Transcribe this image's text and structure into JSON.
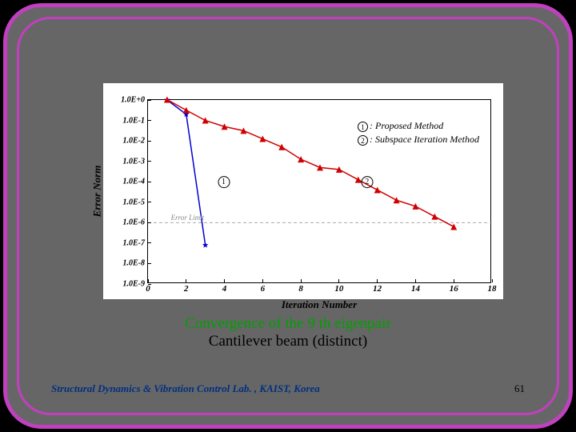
{
  "slide": {
    "background_color": "#666666",
    "frame_outer_color": "#c040c0",
    "frame_inner_color": "#c040c0"
  },
  "chart": {
    "type": "line",
    "xlabel": "Iteration Number",
    "ylabel": "Error Norm",
    "xlim": [
      0,
      18
    ],
    "xtick_step": 2,
    "xticks": [
      0,
      2,
      4,
      6,
      8,
      10,
      12,
      14,
      16,
      18
    ],
    "yscale": "log",
    "ylim_exp": [
      -9,
      0
    ],
    "yticks_labels": [
      "1.0E+0",
      "1.0E-1",
      "1.0E-2",
      "1.0E-3",
      "1.0E-4",
      "1.0E-5",
      "1.0E-6",
      "1.0E-7",
      "1.0E-8",
      "1.0E-9"
    ],
    "yticks_exp": [
      0,
      -1,
      -2,
      -3,
      -4,
      -5,
      -6,
      -7,
      -8,
      -9
    ],
    "background_color": "#ffffff",
    "axis_color": "#000000",
    "tick_fontsize": 10,
    "label_fontsize": 13,
    "label_fontstyle": "italic bold",
    "error_limit": {
      "label": "Error Limit",
      "y_exp": -6,
      "line_color": "#aaaaaa",
      "dash": "4 3",
      "label_x": 1.2
    },
    "series": [
      {
        "id": 1,
        "name": "Proposed Method",
        "color": "#0000d0",
        "marker": "star",
        "marker_color": "#0000d0",
        "line_width": 1.5,
        "points": [
          {
            "x": 1,
            "y_exp": 0.0
          },
          {
            "x": 2,
            "y_exp": -0.7
          },
          {
            "x": 3,
            "y_exp": -7.1
          }
        ],
        "annot_pos": {
          "x": 4.0,
          "y_exp": -4.0
        }
      },
      {
        "id": 2,
        "name": "Subspace Iteration Method",
        "color": "#d00000",
        "marker": "triangle",
        "marker_color": "#d00000",
        "line_width": 1.5,
        "points": [
          {
            "x": 1,
            "y_exp": 0.02
          },
          {
            "x": 2,
            "y_exp": -0.5
          },
          {
            "x": 3,
            "y_exp": -1.0
          },
          {
            "x": 4,
            "y_exp": -1.3
          },
          {
            "x": 5,
            "y_exp": -1.5
          },
          {
            "x": 6,
            "y_exp": -1.9
          },
          {
            "x": 7,
            "y_exp": -2.3
          },
          {
            "x": 8,
            "y_exp": -2.9
          },
          {
            "x": 9,
            "y_exp": -3.3
          },
          {
            "x": 10,
            "y_exp": -3.4
          },
          {
            "x": 11,
            "y_exp": -3.9
          },
          {
            "x": 12,
            "y_exp": -4.4
          },
          {
            "x": 13,
            "y_exp": -4.9
          },
          {
            "x": 14,
            "y_exp": -5.2
          },
          {
            "x": 15,
            "y_exp": -5.7
          },
          {
            "x": 16,
            "y_exp": -6.2
          }
        ],
        "annot_pos": {
          "x": 11.5,
          "y_exp": -4.0
        }
      }
    ],
    "legend": {
      "position": "top-right",
      "rows": [
        {
          "num": "1",
          "text": ": Proposed Method"
        },
        {
          "num": "2",
          "text": ": Subspace Iteration Method"
        }
      ]
    }
  },
  "caption": {
    "line1": "Convergence of the 9 th eigenpair",
    "line2": "Cantilever beam (distinct)",
    "line1_color": "#00a000",
    "line2_color": "#000000",
    "fontsize": 19
  },
  "footer": {
    "text": "Structural Dynamics & Vibration Control Lab. , KAIST, Korea",
    "color": "#003080",
    "fontsize": 13
  },
  "page_number": "61"
}
